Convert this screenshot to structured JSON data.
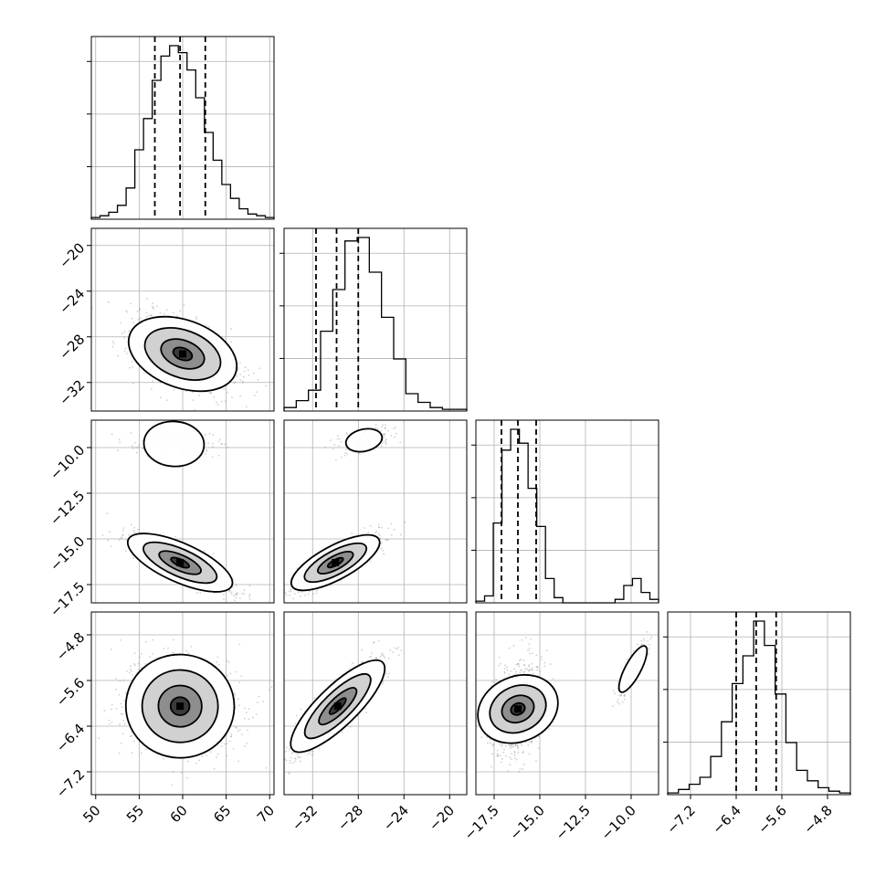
{
  "chart_data": {
    "type": "corner",
    "grid": true,
    "parameters": [
      {
        "range": [
          49.5,
          70.5
        ],
        "ticks": [
          50,
          55,
          60,
          65,
          70
        ],
        "tick_labels": [
          "50",
          "55",
          "60",
          "65",
          "70"
        ],
        "quantiles": [
          56.8,
          59.7,
          62.6
        ],
        "hist": [
          1,
          2,
          4,
          8,
          18,
          40,
          58,
          80,
          94,
          100,
          96,
          86,
          70,
          50,
          34,
          20,
          12,
          6,
          3,
          2,
          1
        ],
        "modes": [
          {
            "center": 59.7,
            "sd": 3
          }
        ]
      },
      {
        "range": [
          -34.5,
          -18.5
        ],
        "ticks": [
          -32,
          -28,
          -24,
          -20
        ],
        "tick_labels": [
          "−32",
          "−28",
          "−24",
          "−20"
        ],
        "quantiles": [
          -31.7,
          -29.9,
          -28.0
        ],
        "hist": [
          2,
          6,
          12,
          46,
          70,
          98,
          100,
          80,
          54,
          30,
          10,
          5,
          2,
          1,
          1
        ],
        "modes": [
          {
            "center": -29.9,
            "sd": 1.9
          }
        ]
      },
      {
        "range": [
          -18.5,
          -8.5
        ],
        "ticks": [
          -17.5,
          -15,
          -12.5,
          -10
        ],
        "tick_labels": [
          "−17.5",
          "−15.0",
          "−12.5",
          "−10.0"
        ],
        "quantiles": [
          -17.1,
          -16.2,
          -15.2
        ],
        "hist": [
          1,
          4,
          46,
          88,
          100,
          92,
          66,
          44,
          14,
          3,
          0,
          0,
          0,
          0,
          0,
          0,
          2,
          10,
          14,
          6,
          2
        ],
        "modes": [
          {
            "center": -16.2,
            "sd": 0.7,
            "w": 0.9
          },
          {
            "center": -9.8,
            "sd": 0.5,
            "w": 0.1
          }
        ]
      },
      {
        "range": [
          -7.6,
          -4.4
        ],
        "ticks": [
          -7.2,
          -6.4,
          -5.6,
          -4.8
        ],
        "tick_labels": [
          "−7.2",
          "−6.4",
          "−5.6",
          "−4.8"
        ],
        "quantiles": [
          -6.4,
          -6.05,
          -5.7
        ],
        "hist": [
          1,
          3,
          6,
          10,
          22,
          42,
          64,
          80,
          100,
          86,
          58,
          30,
          14,
          8,
          4,
          2,
          1
        ],
        "modes": [
          {
            "center": -6.05,
            "sd": 0.38
          }
        ]
      }
    ],
    "pairs": [
      {
        "i": 1,
        "j": 0,
        "clouds": [
          {
            "cx": 60,
            "cy": -29.5,
            "sx": 3,
            "sy": 1.7,
            "r": -0.5,
            "n": 900
          }
        ]
      },
      {
        "i": 2,
        "j": 0,
        "clouds": [
          {
            "cx": 59.7,
            "cy": -16.3,
            "sx": 3,
            "sy": 0.75,
            "r": -0.85,
            "n": 850
          },
          {
            "cx": 59,
            "cy": -9.8,
            "sx": 3,
            "sy": 0.3,
            "r": -0.3,
            "n": 180
          }
        ]
      },
      {
        "i": 2,
        "j": 1,
        "clouds": [
          {
            "cx": -30,
            "cy": -16.3,
            "sx": 1.9,
            "sy": 0.75,
            "r": 0.85,
            "n": 850
          },
          {
            "cx": -27.5,
            "cy": -9.6,
            "sx": 1.2,
            "sy": 0.35,
            "r": 0.5,
            "n": 180
          }
        ]
      },
      {
        "i": 3,
        "j": 0,
        "clouds": [
          {
            "cx": 59.7,
            "cy": -6.05,
            "sx": 3.3,
            "sy": 0.42,
            "r": -0.05,
            "n": 1000
          }
        ]
      },
      {
        "i": 3,
        "j": 1,
        "clouds": [
          {
            "cx": -29.8,
            "cy": -6.05,
            "sx": 1.9,
            "sy": 0.42,
            "r": 0.88,
            "n": 1000
          }
        ]
      },
      {
        "i": 3,
        "j": 2,
        "clouds": [
          {
            "cx": -16.2,
            "cy": -6.1,
            "sx": 0.7,
            "sy": 0.4,
            "r": 0.25,
            "n": 850
          },
          {
            "cx": -9.9,
            "cy": -5.4,
            "sx": 0.45,
            "sy": 0.3,
            "r": 0.9,
            "n": 180
          }
        ]
      }
    ]
  }
}
